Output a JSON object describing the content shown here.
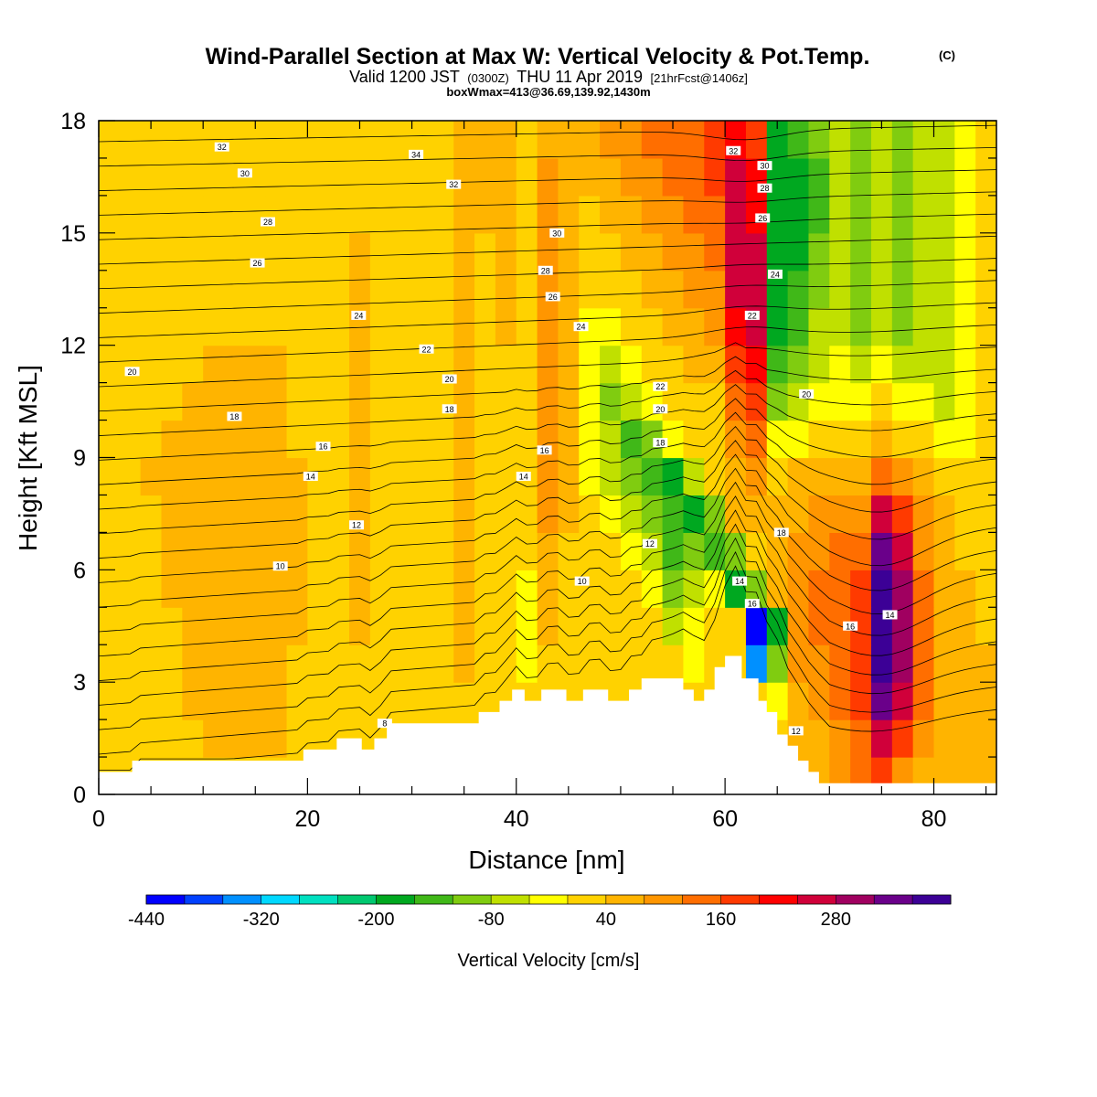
{
  "title": {
    "main": "Wind-Parallel Section at Max W: Vertical Velocity & Pot.Temp.",
    "copyright": "(C)",
    "valid_line": {
      "prefix": "Valid 1200 JST",
      "utc": "(0300Z)",
      "date": "THU 11 Apr 2019",
      "forecast": "[21hrFcst@1406z]"
    },
    "box_line": "boxWmax=413@36.69,139.92,1430m"
  },
  "chart_data": {
    "type": "heatmap",
    "title": "Wind-Parallel Section at Max W: Vertical Velocity & Pot.Temp.",
    "xlabel": "Distance [nm]",
    "ylabel": "Height [Kft MSL]",
    "xlim": [
      0,
      86
    ],
    "ylim": [
      0,
      18
    ],
    "x_ticks": [
      "0",
      "20",
      "40",
      "60",
      "80"
    ],
    "x_tick_values": [
      0,
      20,
      40,
      60,
      80
    ],
    "y_ticks": [
      "0",
      "3",
      "6",
      "9",
      "12",
      "15",
      "18"
    ],
    "y_tick_values": [
      0,
      3,
      6,
      9,
      12,
      15,
      18
    ],
    "colorbar": {
      "label": "Vertical Velocity [cm/s]",
      "labels": [
        "-440",
        "-320",
        "-200",
        "-80",
        "40",
        "160",
        "280"
      ],
      "range": [
        -440,
        400
      ],
      "step": 40,
      "colors": [
        "#0000ff",
        "#0040ff",
        "#0090ff",
        "#00d8ff",
        "#00e0c0",
        "#00c870",
        "#00a820",
        "#40b818",
        "#80cc10",
        "#c0e000",
        "#ffff00",
        "#ffd200",
        "#ffb400",
        "#ff9600",
        "#ff6e00",
        "#ff3a00",
        "#ff0000",
        "#d0003a",
        "#a00060",
        "#6a008a",
        "#3c0096"
      ]
    },
    "field": {
      "name": "Vertical Velocity",
      "units": "cm/s",
      "rows_height_kft": [
        0.5,
        1.5,
        2.5,
        3.5,
        4.5,
        5.5,
        6.5,
        7.5,
        8.5,
        9.5,
        10.5,
        11.5,
        12.5,
        13.5,
        14.5,
        15.5,
        16.5,
        17.5
      ],
      "cols_distance_nm": [
        1,
        3,
        5,
        7,
        9,
        11,
        13,
        15,
        17,
        19,
        21,
        23,
        25,
        27,
        29,
        31,
        33,
        35,
        37,
        39,
        41,
        43,
        45,
        47,
        49,
        51,
        53,
        55,
        57,
        59,
        61,
        63,
        65,
        67,
        69,
        71,
        73,
        75,
        77,
        79,
        81,
        83,
        85
      ],
      "values": [
        [
          20,
          20,
          20,
          20,
          20,
          20,
          20,
          20,
          20,
          20,
          20,
          20,
          20,
          20,
          20,
          20,
          20,
          20,
          20,
          20,
          20,
          20,
          20,
          20,
          20,
          20,
          20,
          20,
          20,
          20,
          20,
          20,
          20,
          60,
          60,
          100,
          140,
          180,
          100,
          60,
          60,
          60,
          60
        ],
        [
          20,
          20,
          20,
          20,
          20,
          60,
          60,
          60,
          60,
          20,
          20,
          20,
          20,
          20,
          20,
          20,
          20,
          20,
          20,
          20,
          20,
          20,
          20,
          20,
          20,
          20,
          20,
          20,
          20,
          20,
          20,
          20,
          20,
          60,
          60,
          100,
          140,
          260,
          180,
          100,
          60,
          60,
          60
        ],
        [
          20,
          20,
          20,
          20,
          60,
          60,
          60,
          60,
          60,
          20,
          20,
          20,
          20,
          20,
          20,
          20,
          20,
          20,
          20,
          20,
          20,
          20,
          20,
          20,
          20,
          20,
          20,
          20,
          20,
          20,
          20,
          20,
          -40,
          60,
          100,
          140,
          180,
          340,
          260,
          140,
          60,
          60,
          60
        ],
        [
          20,
          20,
          20,
          20,
          60,
          60,
          60,
          60,
          60,
          20,
          20,
          20,
          20,
          20,
          20,
          20,
          20,
          60,
          20,
          20,
          -40,
          20,
          20,
          20,
          20,
          20,
          20,
          20,
          -40,
          20,
          20,
          -360,
          -120,
          100,
          100,
          140,
          180,
          380,
          300,
          140,
          60,
          60,
          60
        ],
        [
          20,
          20,
          20,
          20,
          60,
          60,
          60,
          60,
          60,
          60,
          20,
          20,
          60,
          20,
          20,
          20,
          20,
          60,
          20,
          20,
          -40,
          60,
          20,
          20,
          20,
          20,
          20,
          -80,
          -40,
          20,
          20,
          -440,
          -200,
          100,
          140,
          140,
          180,
          380,
          300,
          140,
          60,
          60,
          20
        ],
        [
          20,
          20,
          20,
          60,
          60,
          60,
          60,
          60,
          60,
          60,
          20,
          20,
          60,
          20,
          20,
          20,
          20,
          60,
          20,
          20,
          -40,
          60,
          20,
          20,
          20,
          20,
          -40,
          -120,
          -80,
          -40,
          -200,
          -120,
          60,
          100,
          140,
          140,
          180,
          380,
          300,
          140,
          60,
          60,
          20
        ],
        [
          20,
          20,
          20,
          60,
          60,
          60,
          60,
          60,
          60,
          60,
          20,
          20,
          60,
          20,
          20,
          20,
          20,
          60,
          20,
          20,
          20,
          60,
          20,
          20,
          20,
          -40,
          -80,
          -160,
          -120,
          -160,
          -120,
          20,
          60,
          100,
          100,
          140,
          140,
          340,
          260,
          100,
          60,
          20,
          20
        ],
        [
          20,
          20,
          20,
          60,
          60,
          60,
          60,
          60,
          60,
          60,
          20,
          20,
          60,
          20,
          20,
          20,
          20,
          60,
          20,
          20,
          20,
          100,
          60,
          20,
          -40,
          -80,
          -120,
          -160,
          -200,
          -120,
          60,
          60,
          60,
          60,
          100,
          100,
          100,
          260,
          180,
          100,
          60,
          20,
          20
        ],
        [
          20,
          20,
          60,
          60,
          60,
          60,
          60,
          60,
          60,
          60,
          20,
          20,
          60,
          20,
          20,
          20,
          20,
          60,
          20,
          20,
          20,
          100,
          60,
          -40,
          -80,
          -120,
          -160,
          -200,
          -80,
          20,
          60,
          100,
          20,
          60,
          60,
          60,
          60,
          140,
          100,
          60,
          20,
          20,
          20
        ],
        [
          20,
          20,
          20,
          60,
          60,
          60,
          60,
          60,
          60,
          20,
          20,
          20,
          60,
          20,
          20,
          20,
          20,
          60,
          20,
          20,
          20,
          100,
          60,
          -40,
          -80,
          -160,
          -120,
          -40,
          20,
          20,
          100,
          140,
          -40,
          -40,
          20,
          20,
          20,
          60,
          20,
          20,
          -40,
          -40,
          20
        ],
        [
          20,
          20,
          20,
          20,
          60,
          60,
          60,
          60,
          60,
          20,
          20,
          20,
          60,
          20,
          20,
          20,
          20,
          60,
          20,
          20,
          20,
          100,
          60,
          -40,
          -120,
          -80,
          -40,
          20,
          20,
          20,
          140,
          180,
          -120,
          -80,
          -40,
          -40,
          -40,
          20,
          -40,
          -40,
          -80,
          -40,
          20
        ],
        [
          20,
          20,
          20,
          20,
          20,
          60,
          60,
          60,
          60,
          20,
          20,
          20,
          60,
          20,
          20,
          20,
          20,
          60,
          20,
          20,
          20,
          100,
          60,
          -40,
          -80,
          -40,
          20,
          20,
          60,
          60,
          180,
          220,
          -160,
          -120,
          -80,
          -40,
          -80,
          -40,
          -80,
          -80,
          -80,
          -40,
          20
        ],
        [
          20,
          20,
          20,
          20,
          20,
          20,
          20,
          20,
          20,
          20,
          20,
          20,
          60,
          20,
          20,
          20,
          20,
          60,
          20,
          60,
          20,
          100,
          60,
          -40,
          -40,
          20,
          20,
          60,
          60,
          100,
          220,
          260,
          -200,
          -160,
          -80,
          -80,
          -120,
          -80,
          -120,
          -80,
          -80,
          -40,
          20
        ],
        [
          20,
          20,
          20,
          20,
          20,
          20,
          20,
          20,
          20,
          20,
          20,
          20,
          60,
          20,
          20,
          20,
          20,
          60,
          20,
          60,
          20,
          100,
          60,
          20,
          20,
          20,
          60,
          60,
          100,
          100,
          260,
          260,
          -200,
          -160,
          -120,
          -80,
          -120,
          -80,
          -120,
          -80,
          -80,
          -40,
          20
        ],
        [
          20,
          20,
          20,
          20,
          20,
          20,
          20,
          20,
          20,
          20,
          20,
          20,
          60,
          20,
          20,
          20,
          20,
          60,
          20,
          60,
          20,
          100,
          60,
          20,
          20,
          60,
          60,
          100,
          100,
          140,
          260,
          260,
          -200,
          -200,
          -120,
          -80,
          -120,
          -80,
          -120,
          -80,
          -80,
          -40,
          20
        ],
        [
          20,
          20,
          20,
          20,
          20,
          20,
          20,
          20,
          20,
          20,
          20,
          20,
          20,
          20,
          20,
          20,
          20,
          60,
          60,
          60,
          20,
          100,
          60,
          20,
          60,
          60,
          100,
          100,
          140,
          140,
          260,
          220,
          -200,
          -200,
          -160,
          -80,
          -120,
          -80,
          -120,
          -80,
          -80,
          -40,
          20
        ],
        [
          20,
          20,
          20,
          20,
          20,
          20,
          20,
          20,
          20,
          20,
          20,
          20,
          20,
          20,
          20,
          20,
          20,
          60,
          60,
          60,
          20,
          100,
          60,
          60,
          60,
          100,
          100,
          140,
          140,
          180,
          260,
          220,
          -200,
          -200,
          -160,
          -80,
          -120,
          -80,
          -120,
          -80,
          -80,
          -40,
          20
        ],
        [
          20,
          20,
          20,
          20,
          20,
          20,
          20,
          20,
          20,
          20,
          20,
          20,
          20,
          20,
          20,
          20,
          20,
          60,
          60,
          60,
          20,
          60,
          60,
          60,
          100,
          100,
          140,
          140,
          140,
          180,
          220,
          180,
          -200,
          -160,
          -120,
          -80,
          -120,
          -80,
          -120,
          -80,
          -80,
          -40,
          20
        ]
      ]
    },
    "terrain": {
      "name": "Terrain",
      "units": "Kft MSL",
      "x": [
        0,
        3.2,
        3.2,
        19.6,
        19.6,
        22.8,
        22.8,
        25.2,
        25.2,
        26.4,
        26.4,
        27.6,
        27.6,
        36.4,
        36.4,
        38.4,
        38.4,
        39.6,
        39.6,
        40.8,
        40.8,
        42.4,
        42.4,
        44.8,
        44.8,
        46.4,
        46.4,
        48.8,
        48.8,
        50.8,
        50.8,
        52,
        52,
        56,
        56,
        57,
        57,
        58,
        58,
        59,
        59,
        60,
        60,
        61.6,
        61.6,
        63.2,
        63.2,
        64,
        64,
        65,
        65,
        66,
        66,
        67,
        67,
        68,
        68,
        69,
        69,
        70,
        70,
        73.5,
        73.5,
        86
      ],
      "y": [
        0.6,
        0.6,
        0.9,
        0.9,
        1.2,
        1.2,
        1.5,
        1.5,
        1.2,
        1.2,
        1.5,
        1.5,
        1.9,
        1.9,
        2.2,
        2.2,
        2.5,
        2.5,
        2.8,
        2.8,
        2.5,
        2.5,
        2.8,
        2.8,
        2.5,
        2.5,
        2.8,
        2.8,
        2.5,
        2.5,
        2.8,
        2.8,
        3.1,
        3.1,
        2.8,
        2.8,
        2.5,
        2.5,
        2.8,
        2.8,
        3.4,
        3.4,
        3.7,
        3.7,
        3.1,
        3.1,
        2.5,
        2.5,
        2.2,
        2.2,
        1.6,
        1.6,
        1.3,
        1.3,
        0.9,
        0.9,
        0.6,
        0.6,
        0.3,
        0.3,
        0.3,
        0.3,
        0.3,
        0.3
      ]
    },
    "potential_temperature_contours": {
      "name": "Pot.Temp.",
      "labels": [
        {
          "text": "32",
          "x": 11.8,
          "y": 17.3
        },
        {
          "text": "34",
          "x": 30.4,
          "y": 17.1
        },
        {
          "text": "30",
          "x": 14,
          "y": 16.6
        },
        {
          "text": "32",
          "x": 34,
          "y": 16.3
        },
        {
          "text": "28",
          "x": 16.2,
          "y": 15.3
        },
        {
          "text": "30",
          "x": 43.9,
          "y": 15.0
        },
        {
          "text": "26",
          "x": 15.2,
          "y": 14.2
        },
        {
          "text": "28",
          "x": 42.8,
          "y": 14.0
        },
        {
          "text": "26",
          "x": 43.5,
          "y": 13.3
        },
        {
          "text": "24",
          "x": 24.9,
          "y": 12.8
        },
        {
          "text": "24",
          "x": 46.2,
          "y": 12.5
        },
        {
          "text": "22",
          "x": 31.4,
          "y": 11.9
        },
        {
          "text": "20",
          "x": 3.2,
          "y": 11.3
        },
        {
          "text": "20",
          "x": 33.6,
          "y": 11.1
        },
        {
          "text": "18",
          "x": 33.6,
          "y": 10.3
        },
        {
          "text": "18",
          "x": 13,
          "y": 10.1
        },
        {
          "text": "16",
          "x": 21.5,
          "y": 9.3
        },
        {
          "text": "16",
          "x": 42.7,
          "y": 9.2
        },
        {
          "text": "14",
          "x": 20.3,
          "y": 8.5
        },
        {
          "text": "14",
          "x": 40.7,
          "y": 8.5
        },
        {
          "text": "12",
          "x": 24.7,
          "y": 7.2
        },
        {
          "text": "12",
          "x": 52.8,
          "y": 6.7
        },
        {
          "text": "10",
          "x": 17.4,
          "y": 6.1
        },
        {
          "text": "10",
          "x": 46.3,
          "y": 5.7
        },
        {
          "text": "8",
          "x": 27.4,
          "y": 1.9
        },
        {
          "text": "32",
          "x": 60.8,
          "y": 17.2
        },
        {
          "text": "30",
          "x": 63.8,
          "y": 16.8
        },
        {
          "text": "28",
          "x": 63.8,
          "y": 16.2
        },
        {
          "text": "26",
          "x": 63.6,
          "y": 15.4
        },
        {
          "text": "24",
          "x": 64.8,
          "y": 13.9
        },
        {
          "text": "22",
          "x": 62.6,
          "y": 12.8
        },
        {
          "text": "22",
          "x": 53.8,
          "y": 10.9
        },
        {
          "text": "20",
          "x": 53.8,
          "y": 10.3
        },
        {
          "text": "18",
          "x": 53.8,
          "y": 9.4
        },
        {
          "text": "20",
          "x": 67.8,
          "y": 10.7
        },
        {
          "text": "18",
          "x": 65.4,
          "y": 7.0
        },
        {
          "text": "14",
          "x": 61.4,
          "y": 5.7
        },
        {
          "text": "16",
          "x": 62.6,
          "y": 5.1
        },
        {
          "text": "16",
          "x": 72,
          "y": 4.5
        },
        {
          "text": "14",
          "x": 75.8,
          "y": 4.8
        },
        {
          "text": "12",
          "x": 66.8,
          "y": 1.7
        }
      ]
    }
  }
}
